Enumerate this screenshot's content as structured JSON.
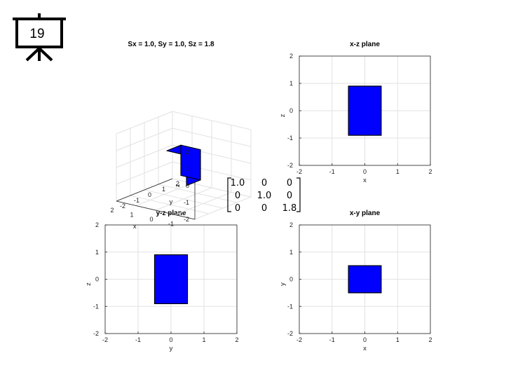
{
  "slide": {
    "number": "19",
    "icon": "presentation-board-icon"
  },
  "matrix": {
    "rows": [
      [
        "1.0",
        "0",
        "0"
      ],
      [
        "0",
        "1.0",
        "0"
      ],
      [
        "0",
        "0",
        "1.8"
      ]
    ],
    "highlight_color": "#d40000"
  },
  "chart_data": [
    {
      "type": "3d-box",
      "title": "Sx = 1.0, Sy = 1.0, Sz = 1.8",
      "xlabel": "x",
      "ylabel": "y",
      "zlabel": "z",
      "xlim": [
        -2,
        2
      ],
      "ylim": [
        -2,
        2
      ],
      "zlim": [
        -2,
        2
      ],
      "xticks": [
        -1,
        0,
        1,
        2
      ],
      "yticks": [
        -2,
        -1,
        0,
        1,
        2
      ],
      "zticks": [
        -2,
        -1,
        0,
        1,
        2
      ],
      "box": {
        "x": [
          -0.5,
          0.5
        ],
        "y": [
          -0.5,
          0.5
        ],
        "z": [
          -0.9,
          0.9
        ]
      },
      "grid": true,
      "face_color": "#0000ff"
    },
    {
      "type": "rectangle",
      "title": "x-z plane",
      "xlabel": "x",
      "ylabel": "z",
      "xlim": [
        -2,
        2
      ],
      "ylim": [
        -2,
        2
      ],
      "xticks": [
        -2,
        -1,
        0,
        1,
        2
      ],
      "yticks": [
        -2,
        -1,
        0,
        1,
        2
      ],
      "rect": {
        "x": [
          -0.5,
          0.5
        ],
        "y": [
          -0.9,
          0.9
        ]
      },
      "grid": true,
      "face_color": "#0000ff"
    },
    {
      "type": "rectangle",
      "title": "y-z plane",
      "xlabel": "y",
      "ylabel": "z",
      "xlim": [
        -2,
        2
      ],
      "ylim": [
        -2,
        2
      ],
      "xticks": [
        -2,
        -1,
        0,
        1,
        2
      ],
      "yticks": [
        -2,
        -1,
        0,
        1,
        2
      ],
      "rect": {
        "x": [
          -0.5,
          0.5
        ],
        "y": [
          -0.9,
          0.9
        ]
      },
      "grid": true,
      "face_color": "#0000ff"
    },
    {
      "type": "rectangle",
      "title": "x-y plane",
      "xlabel": "x",
      "ylabel": "y",
      "xlim": [
        -2,
        2
      ],
      "ylim": [
        -2,
        2
      ],
      "xticks": [
        -2,
        -1,
        0,
        1,
        2
      ],
      "yticks": [
        -2,
        -1,
        0,
        1,
        2
      ],
      "rect": {
        "x": [
          -0.5,
          0.5
        ],
        "y": [
          -0.5,
          0.5
        ]
      },
      "grid": true,
      "face_color": "#0000ff"
    }
  ]
}
